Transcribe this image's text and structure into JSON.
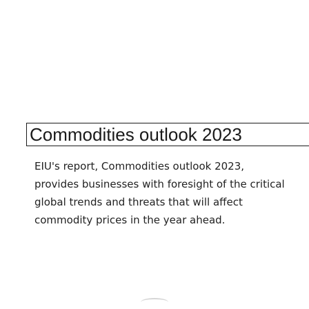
{
  "article": {
    "title": "Commodities outlook 2023",
    "description": "EIU's report, Commodities outlook 2023, provides businesses with foresight of the critical global trends and threats that will affect commodity prices in the year ahead."
  },
  "colors": {
    "background": "#ffffff",
    "text": "#1a1a1a",
    "border": "#1a1a1a"
  }
}
